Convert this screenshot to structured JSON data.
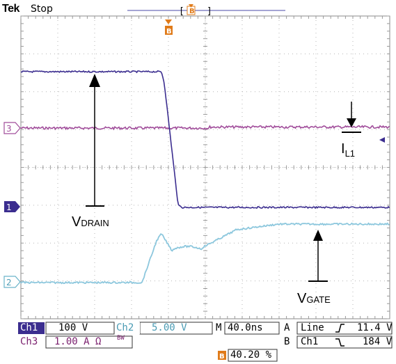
{
  "header": {
    "brand": "Tek",
    "status": "Stop",
    "trigger_marker": "B",
    "bracket_left": "[",
    "bracket_right": "]"
  },
  "markers": {
    "ch3": "3",
    "ch1": "1",
    "ch2": "2",
    "top_trigger": "B"
  },
  "annotations": {
    "v_drain": {
      "main": "V",
      "sub": "DRAIN"
    },
    "i_l1": {
      "main": "I",
      "sub": "L1"
    },
    "v_gate": {
      "main": "V",
      "sub": "GATE"
    }
  },
  "readouts": {
    "ch1_label": "Ch1",
    "ch1_value": "100 V",
    "ch2_label": "Ch2",
    "ch2_value": "5.00 V",
    "ch3_label": "Ch3",
    "ch3_value": "1.00 A Ω",
    "ch3_bw": "BW",
    "timebase_label": "M",
    "timebase_value": "40.0ns",
    "trigA_label": "A",
    "trigA_source": "Line",
    "trigA_slope": "rising",
    "trigA_level": "11.4 V",
    "trigB_label": "B",
    "trigB_source": "Ch1",
    "trigB_slope": "falling",
    "trigB_level": "184 V",
    "position_marker": "B",
    "position_value": "40.20 %"
  },
  "colors": {
    "ch1": "#3b2d8f",
    "ch2": "#8cc7dd",
    "ch3": "#a04c9a",
    "grid": "#9a9a9a",
    "trigger": "#e07b1a"
  }
}
